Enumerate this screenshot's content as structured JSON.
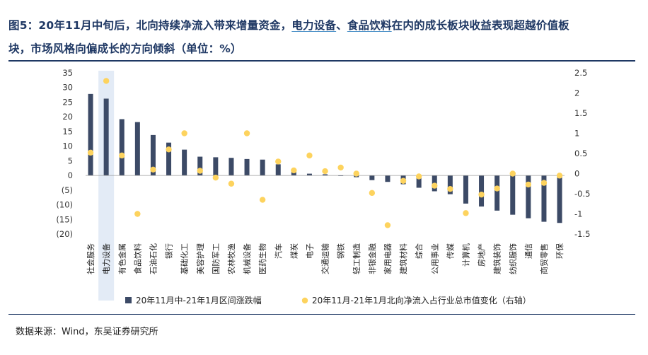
{
  "title": {
    "line1_prefix": "图5：20年11月中旬后，北向持续净流入带来增量资金，",
    "line1_hl1": "电力设备",
    "line1_sep": "、",
    "line1_hl2": "食品饮料",
    "line1_suffix": "在内的成长板块收益表现超越价值板",
    "line2": "块，市场风格向偏成长的方向倾斜（单位：%）"
  },
  "source": "数据来源：Wind，东吴证券研究所",
  "colors": {
    "bar": "#3c4a66",
    "dot": "#fdd35e",
    "highlight": "#e3ebf6",
    "negative_tick": "#e0262f",
    "title": "#1f3864"
  },
  "chart_data": {
    "type": "bar",
    "categories": [
      "社会服务",
      "电力设备",
      "有色金属",
      "食品饮料",
      "石油石化",
      "银行",
      "基础化工",
      "美容护理",
      "国防军工",
      "农林牧渔",
      "机械设备",
      "医药生物",
      "汽车",
      "煤炭",
      "电子",
      "交通运输",
      "钢铁",
      "轻工制造",
      "非银金融",
      "家用电器",
      "建筑材料",
      "综合",
      "公用事业",
      "传媒",
      "计算机",
      "房地产",
      "建筑装饰",
      "纺织服饰",
      "通信",
      "商贸零售",
      "环保"
    ],
    "series": [
      {
        "name": "20年11月中-21年1月区间涨跌幅",
        "kind": "bar",
        "axis": "left",
        "values": [
          27.8,
          26.2,
          19.2,
          18.2,
          13.8,
          11.2,
          8.8,
          6.4,
          6.2,
          6.0,
          5.6,
          5.4,
          3.8,
          1.6,
          0.6,
          0.4,
          -0.2,
          -0.6,
          -1.6,
          -2.2,
          -3.0,
          -4.2,
          -5.4,
          -6.4,
          -9.6,
          -10.6,
          -12.0,
          -13.4,
          -14.6,
          -15.8,
          -16.2
        ]
      },
      {
        "name": "20年11月-21年1月北向净流入占行业总市值变化（右轴）",
        "kind": "scatter",
        "axis": "right",
        "values": [
          0.52,
          2.3,
          0.45,
          -1.0,
          0.1,
          0.6,
          1.0,
          0.07,
          -0.1,
          -0.25,
          1.0,
          -0.65,
          0.3,
          0.08,
          0.45,
          0.06,
          0.15,
          0.0,
          -0.48,
          -1.28,
          -0.18,
          -0.07,
          -0.3,
          -0.38,
          -0.98,
          -0.52,
          -0.37,
          0.0,
          -0.27,
          -0.23,
          -0.05
        ]
      }
    ],
    "left_axis": {
      "ylim": [
        -20,
        35
      ],
      "ticks": [
        35,
        30,
        25,
        20,
        15,
        10,
        5,
        0,
        -5,
        -10,
        -15,
        -20
      ],
      "tick_labels": [
        "35",
        "30",
        "25",
        "20",
        "15",
        "10",
        "5",
        "0",
        "(5)",
        "(10)",
        "(15)",
        "(20)"
      ]
    },
    "right_axis": {
      "ylim": [
        -1.5,
        2.5
      ],
      "ticks": [
        2.5,
        2,
        1.5,
        1,
        0.5,
        0,
        -0.5,
        -1,
        -1.5
      ],
      "tick_labels": [
        "2.5",
        "2",
        "1.5",
        "1",
        "0.5",
        "0",
        "-0.5",
        "-1",
        "-1.5"
      ]
    },
    "highlighted_category": "电力设备",
    "legend_position": "bottom-center"
  }
}
